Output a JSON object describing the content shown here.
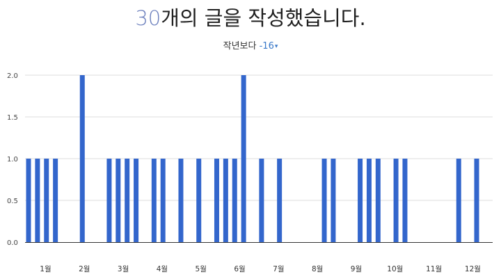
{
  "header": {
    "count": "30",
    "title_rest": "개의 글을 작성했습니다.",
    "compare_label": "작년보다",
    "compare_delta": "-16",
    "compare_caret": "▾"
  },
  "colors": {
    "bar": "#3366cc",
    "grid": "#dddddd",
    "axis": "#333333",
    "accent": "#6b7fbd",
    "delta": "#3a79c9"
  },
  "chart_data": {
    "type": "bar",
    "title": "",
    "xlabel": "",
    "ylabel": "",
    "ylim": [
      0,
      2
    ],
    "yticks": [
      "0.0",
      "0.5",
      "1.0",
      "1.5",
      "2.0"
    ],
    "grid": true,
    "x_unit": "week of year",
    "x_range": [
      1,
      52
    ],
    "month_labels": [
      "1월",
      "2월",
      "3월",
      "4월",
      "5월",
      "6월",
      "7월",
      "8월",
      "9월",
      "10월",
      "11월",
      "12월"
    ],
    "points": [
      {
        "x": 1,
        "y": 1
      },
      {
        "x": 2,
        "y": 1
      },
      {
        "x": 3,
        "y": 1
      },
      {
        "x": 4,
        "y": 1
      },
      {
        "x": 7,
        "y": 2
      },
      {
        "x": 10,
        "y": 1
      },
      {
        "x": 11,
        "y": 1
      },
      {
        "x": 12,
        "y": 1
      },
      {
        "x": 13,
        "y": 1
      },
      {
        "x": 15,
        "y": 1
      },
      {
        "x": 16,
        "y": 1
      },
      {
        "x": 18,
        "y": 1
      },
      {
        "x": 20,
        "y": 1
      },
      {
        "x": 22,
        "y": 1
      },
      {
        "x": 23,
        "y": 1
      },
      {
        "x": 24,
        "y": 1
      },
      {
        "x": 25,
        "y": 2
      },
      {
        "x": 27,
        "y": 1
      },
      {
        "x": 29,
        "y": 1
      },
      {
        "x": 34,
        "y": 1
      },
      {
        "x": 35,
        "y": 1
      },
      {
        "x": 38,
        "y": 1
      },
      {
        "x": 39,
        "y": 1
      },
      {
        "x": 40,
        "y": 1
      },
      {
        "x": 42,
        "y": 1
      },
      {
        "x": 43,
        "y": 1
      },
      {
        "x": 49,
        "y": 1
      },
      {
        "x": 51,
        "y": 1
      }
    ]
  }
}
